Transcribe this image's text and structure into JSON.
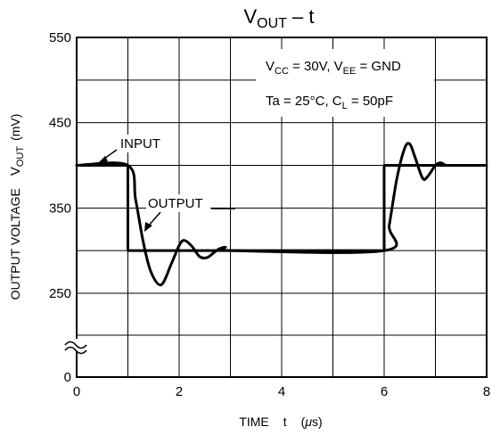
{
  "chart_data": {
    "type": "line",
    "title": {
      "main": "V",
      "sub": "OUT",
      "rest": " – t"
    },
    "xlabel": {
      "a": "TIME",
      "b": "t",
      "c": "(",
      "mu": "μ",
      "d": "s)"
    },
    "ylabel": {
      "a": "OUTPUT VOLTAGE",
      "v": "V",
      "sub": "OUT",
      "u": "(mV)"
    },
    "x_ticks": [
      "0",
      "2",
      "4",
      "6",
      "8"
    ],
    "y_ticks": [
      "550",
      "450",
      "350",
      "250",
      "0"
    ],
    "xlim": [
      0,
      8
    ],
    "ylim": [
      0,
      550
    ],
    "y_axis_break": true,
    "grid": true,
    "annotations": {
      "cond1": {
        "a": "V",
        "a_sub": "CC",
        "b": " = 30V,  V",
        "b_sub": "EE",
        "c": " = GND"
      },
      "cond2": {
        "a": "Ta = 25°C,  C",
        "a_sub": "L",
        "b": " = 50pF"
      },
      "input_label": "INPUT",
      "output_label": "OUTPUT"
    },
    "series": [
      {
        "name": "INPUT",
        "x": [
          0,
          1,
          1,
          6,
          6,
          8
        ],
        "y": [
          400,
          400,
          300,
          300,
          400,
          400
        ]
      },
      {
        "name": "OUTPUT",
        "x": [
          0,
          1,
          1.15,
          1.3,
          1.45,
          1.65,
          1.85,
          2.0,
          2.1,
          2.25,
          2.4,
          2.55,
          2.75,
          2.9,
          3.05,
          6,
          6.1,
          6.25,
          6.4,
          6.5,
          6.6,
          6.75,
          6.85,
          7.0,
          7.1,
          7.2
        ],
        "y": [
          400,
          400,
          360,
          310,
          275,
          260,
          285,
          306,
          312,
          305,
          293,
          292,
          301,
          304,
          300,
          300,
          330,
          385,
          420,
          425,
          410,
          385,
          387,
          400,
          403,
          400
        ]
      }
    ]
  }
}
